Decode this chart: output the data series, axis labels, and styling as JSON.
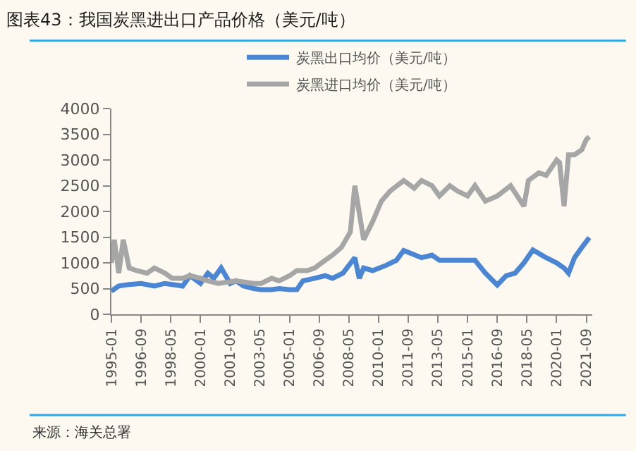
{
  "chart_data": {
    "type": "line",
    "title": "图表43：我国炭黑进出口产品价格（美元/吨）",
    "annotations": [
      "来源：海关总署"
    ],
    "x": [
      "1995-01",
      "1995-06",
      "1996-01",
      "1996-09",
      "1997-06",
      "1998-01",
      "1998-06",
      "1999-01",
      "1999-06",
      "2000-01",
      "2000-06",
      "2000-10",
      "2001-03",
      "2001-09",
      "2002-01",
      "2002-06",
      "2003-01",
      "2003-06",
      "2004-01",
      "2004-06",
      "2005-01",
      "2005-06",
      "2005-10",
      "2006-06",
      "2007-01",
      "2007-06",
      "2008-01",
      "2008-09",
      "2008-12",
      "2009-03",
      "2009-09",
      "2010-06",
      "2011-01",
      "2011-06",
      "2012-06",
      "2013-01",
      "2013-06",
      "2014-06",
      "2015-06",
      "2016-01",
      "2016-09",
      "2017-03",
      "2017-09",
      "2018-03",
      "2018-09",
      "2019-06",
      "2020-01",
      "2020-06",
      "2020-09",
      "2021-01",
      "2021-06",
      "2021-11"
    ],
    "series": [
      {
        "name": "炭黑出口均价（美元/吨）",
        "color": "#4a86d4",
        "values": [
          450,
          550,
          580,
          600,
          550,
          600,
          580,
          550,
          750,
          600,
          800,
          700,
          900,
          600,
          650,
          550,
          500,
          480,
          480,
          500,
          480,
          480,
          650,
          700,
          750,
          700,
          800,
          1100,
          700,
          900,
          850,
          950,
          1050,
          1240,
          1100,
          1150,
          1050,
          1050,
          1050,
          800,
          570,
          750,
          800,
          1000,
          1250,
          1100,
          1000,
          900,
          800,
          1100,
          1300,
          1490
        ]
      },
      {
        "name": "炭黑进口均价（美元/吨）",
        "color": "#a6a6a6",
        "x": [
          "1995-01",
          "1995-03",
          "1995-06",
          "1995-09",
          "1996-01",
          "1996-06",
          "1997-01",
          "1997-06",
          "1998-01",
          "1998-06",
          "1999-01",
          "1999-06",
          "2000-01",
          "2000-06",
          "2001-01",
          "2002-01",
          "2003-01",
          "2003-06",
          "2004-01",
          "2004-06",
          "2005-01",
          "2005-06",
          "2006-01",
          "2006-06",
          "2007-01",
          "2007-06",
          "2007-12",
          "2008-06",
          "2008-09",
          "2009-03",
          "2009-09",
          "2010-03",
          "2010-09",
          "2011-06",
          "2012-01",
          "2012-06",
          "2013-01",
          "2013-06",
          "2014-01",
          "2014-06",
          "2015-01",
          "2015-06",
          "2016-01",
          "2016-09",
          "2017-06",
          "2018-03",
          "2018-06",
          "2019-01",
          "2019-06",
          "2020-01",
          "2020-03",
          "2020-06",
          "2020-09",
          "2021-01",
          "2021-06",
          "2021-09",
          "2021-11"
        ],
        "values": [
          1000,
          1450,
          800,
          1450,
          900,
          850,
          800,
          900,
          800,
          700,
          700,
          750,
          700,
          650,
          600,
          650,
          600,
          600,
          700,
          650,
          750,
          850,
          850,
          900,
          1050,
          1150,
          1300,
          1600,
          2500,
          1450,
          1800,
          2200,
          2400,
          2600,
          2450,
          2600,
          2500,
          2300,
          2500,
          2400,
          2300,
          2500,
          2200,
          2300,
          2500,
          2100,
          2600,
          2750,
          2700,
          3000,
          2950,
          2100,
          3100,
          3100,
          3200,
          3400,
          3450
        ]
      }
    ],
    "xlim": [
      "1995-01",
      "2022-01"
    ],
    "xticks": [
      "1995-01",
      "1996-09",
      "1998-05",
      "2000-01",
      "2001-09",
      "2003-05",
      "2005-01",
      "2006-09",
      "2008-05",
      "2010-01",
      "2011-09",
      "2013-05",
      "2015-01",
      "2016-09",
      "2018-05",
      "2020-01",
      "2021-09"
    ],
    "ylim": [
      0,
      4000
    ],
    "yticks": [
      0,
      500,
      1000,
      1500,
      2000,
      2500,
      3000,
      3500,
      4000
    ],
    "grid": false,
    "legend": "top",
    "marker": "none",
    "line_style": "solid"
  }
}
